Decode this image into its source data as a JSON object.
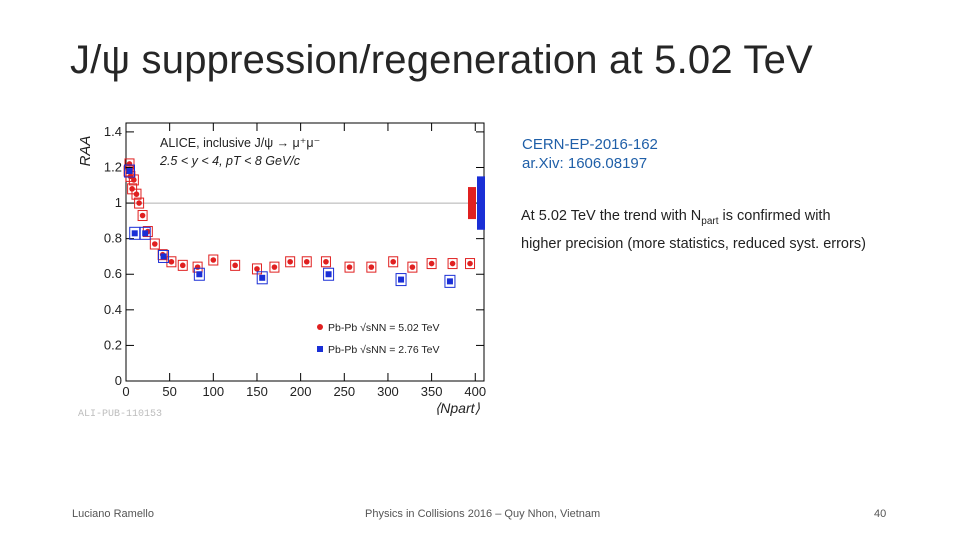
{
  "slide": {
    "title": "J/ψ suppression/regeneration at 5.02 TeV",
    "reference_line1": "CERN-EP-2016-162",
    "reference_line2": "ar.Xiv: 1606.08197",
    "desc_before_sub": "At 5.02 TeV the trend with N",
    "desc_sub": "part",
    "desc_after_sub": " is confirmed with higher precision (more statistics, reduced syst. errors)",
    "footer_author": "Luciano Ramello",
    "footer_conference": "Physics in Collisions 2016 – Quy Nhon, Vietnam",
    "footer_page": "40"
  },
  "chart_data": {
    "type": "scatter",
    "annotation_line1": "ALICE, inclusive J/ψ → μ⁺μ⁻",
    "annotation_line2": "2.5 < y < 4, pT < 8 GeV/c",
    "xlabel": "⟨Npart⟩",
    "ylabel": "RAA",
    "watermark": "ALI-PUB-110153",
    "xlim": [
      0,
      410
    ],
    "ylim": [
      0,
      1.45
    ],
    "x_ticks": [
      0,
      50,
      100,
      150,
      200,
      250,
      300,
      350,
      400
    ],
    "y_ticks": [
      0,
      0.2,
      0.4,
      0.6,
      0.8,
      1,
      1.2,
      1.4
    ],
    "x_tick_labels": [
      "0",
      "50",
      "100",
      "150",
      "200",
      "250",
      "300",
      "350",
      "400"
    ],
    "y_tick_labels": [
      "0",
      "0.2",
      "0.4",
      "0.6",
      "0.8",
      "1",
      "1.2",
      "1.4"
    ],
    "reference_line": 1,
    "series": [
      {
        "name": "Pb-Pb √sNN = 5.02 TeV",
        "color": "#e02020",
        "points": [
          {
            "x": 3,
            "y": 1.18
          },
          {
            "x": 4,
            "y": 1.22
          },
          {
            "x": 5,
            "y": 1.15
          },
          {
            "x": 7,
            "y": 1.08
          },
          {
            "x": 9,
            "y": 1.13
          },
          {
            "x": 12,
            "y": 1.05
          },
          {
            "x": 15,
            "y": 1.0
          },
          {
            "x": 19,
            "y": 0.93
          },
          {
            "x": 25,
            "y": 0.84
          },
          {
            "x": 33,
            "y": 0.77
          },
          {
            "x": 42,
            "y": 0.71
          },
          {
            "x": 52,
            "y": 0.67
          },
          {
            "x": 65,
            "y": 0.65
          },
          {
            "x": 82,
            "y": 0.64
          },
          {
            "x": 100,
            "y": 0.68
          },
          {
            "x": 125,
            "y": 0.65
          },
          {
            "x": 150,
            "y": 0.63
          },
          {
            "x": 170,
            "y": 0.64
          },
          {
            "x": 188,
            "y": 0.67
          },
          {
            "x": 207,
            "y": 0.67
          },
          {
            "x": 229,
            "y": 0.67
          },
          {
            "x": 256,
            "y": 0.64
          },
          {
            "x": 281,
            "y": 0.64
          },
          {
            "x": 306,
            "y": 0.67
          },
          {
            "x": 328,
            "y": 0.64
          },
          {
            "x": 350,
            "y": 0.66
          },
          {
            "x": 374,
            "y": 0.66
          },
          {
            "x": 394,
            "y": 0.66
          }
        ]
      },
      {
        "name": "Pb-Pb √sNN = 2.76 TeV",
        "color": "#1a2fd6",
        "points": [
          {
            "x": 4,
            "y": 1.18
          },
          {
            "x": 10,
            "y": 0.83
          },
          {
            "x": 22,
            "y": 0.83
          },
          {
            "x": 43,
            "y": 0.7
          },
          {
            "x": 84,
            "y": 0.6
          },
          {
            "x": 156,
            "y": 0.58
          },
          {
            "x": 232,
            "y": 0.6
          },
          {
            "x": 315,
            "y": 0.57
          },
          {
            "x": 371,
            "y": 0.56
          }
        ]
      }
    ],
    "legend_position": "bottom-right",
    "global_uncertainty": [
      {
        "series": "Pb-Pb √sNN = 5.02 TeV",
        "color": "#e02020",
        "low": 0.91,
        "high": 1.09
      },
      {
        "series": "Pb-Pb √sNN = 2.76 TeV",
        "color": "#1a2fd6",
        "low": 0.85,
        "high": 1.15
      }
    ]
  }
}
